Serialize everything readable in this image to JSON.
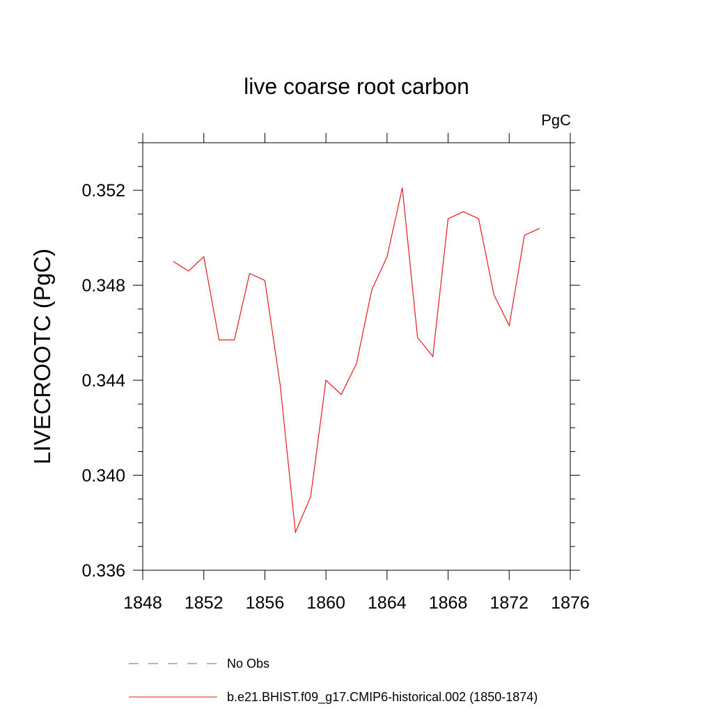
{
  "chart_data": {
    "type": "line",
    "title": "live coarse root carbon",
    "units": "PgC",
    "xlabel": "",
    "ylabel": "LIVECROOTC  (PgC)",
    "xlim": [
      1848,
      1876
    ],
    "ylim": [
      0.336,
      0.354
    ],
    "x_ticks": [
      1848,
      1852,
      1856,
      1860,
      1864,
      1868,
      1872,
      1876
    ],
    "x_tick_labels": [
      "1848",
      "1852",
      "1856",
      "1860",
      "1864",
      "1868",
      "1872",
      "1876"
    ],
    "y_ticks": [
      0.336,
      0.34,
      0.344,
      0.348,
      0.352
    ],
    "y_tick_labels": [
      "0.336",
      "0.340",
      "0.344",
      "0.348",
      "0.352"
    ],
    "grid": false,
    "legend_position": "bottom",
    "series": [
      {
        "name": "No Obs",
        "color": "#6a5acd",
        "dash": "dashed",
        "x": [],
        "values": []
      },
      {
        "name": "b.e21.BHIST.f09_g17.CMIP6-historical.002 (1850-1874)",
        "color": "#e8191e",
        "dash": "solid",
        "x": [
          1850,
          1851,
          1852,
          1853,
          1854,
          1855,
          1856,
          1857,
          1858,
          1859,
          1860,
          1861,
          1862,
          1863,
          1864,
          1865,
          1866,
          1867,
          1868,
          1869,
          1870,
          1871,
          1872,
          1873,
          1874
        ],
        "values": [
          0.349,
          0.3486,
          0.3492,
          0.3457,
          0.3457,
          0.3485,
          0.3482,
          0.3438,
          0.3376,
          0.3391,
          0.344,
          0.3434,
          0.3447,
          0.3478,
          0.3492,
          0.3521,
          0.3458,
          0.345,
          0.3508,
          0.3511,
          0.3508,
          0.3476,
          0.3463,
          0.3501,
          0.3504
        ]
      }
    ]
  }
}
